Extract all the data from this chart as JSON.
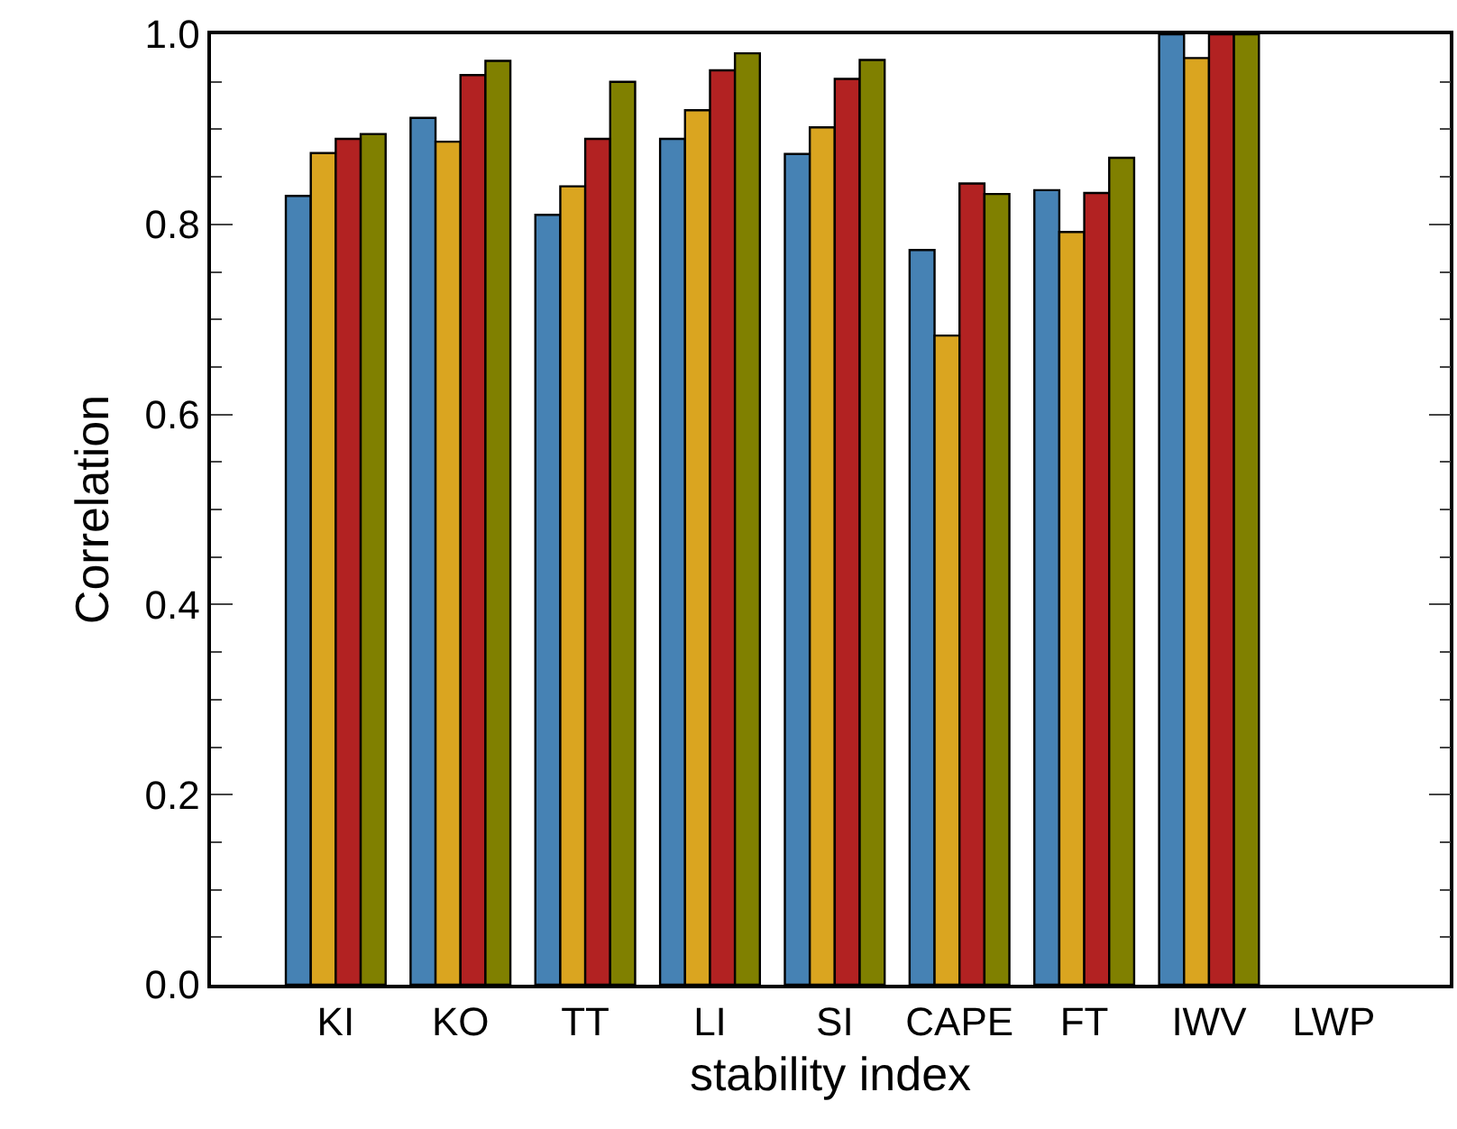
{
  "chart_data": {
    "type": "bar",
    "xlabel": "stability index",
    "ylabel": "Correlation",
    "categories": [
      "KI",
      "KO",
      "TT",
      "LI",
      "SI",
      "CAPE",
      "FT",
      "IWV",
      "LWP"
    ],
    "series": [
      {
        "color": "#4682b4",
        "values": [
          0.83,
          0.912,
          0.81,
          0.89,
          0.874,
          0.773,
          0.836,
          1.0,
          null
        ]
      },
      {
        "color": "#daa520",
        "values": [
          0.875,
          0.887,
          0.84,
          0.92,
          0.902,
          0.683,
          0.792,
          0.975,
          null
        ]
      },
      {
        "color": "#b22222",
        "values": [
          0.89,
          0.957,
          0.89,
          0.962,
          0.953,
          0.843,
          0.833,
          1.0,
          null
        ]
      },
      {
        "color": "#808000",
        "values": [
          0.895,
          0.972,
          0.95,
          0.98,
          0.973,
          0.832,
          0.87,
          1.0,
          null
        ]
      }
    ],
    "ylim": [
      0,
      1.0
    ],
    "yticks": [
      {
        "value": 0,
        "label": "0.0"
      },
      0.2,
      0.4,
      0.6,
      0.8,
      {
        "value": 1.0,
        "label": "1.0"
      }
    ]
  }
}
